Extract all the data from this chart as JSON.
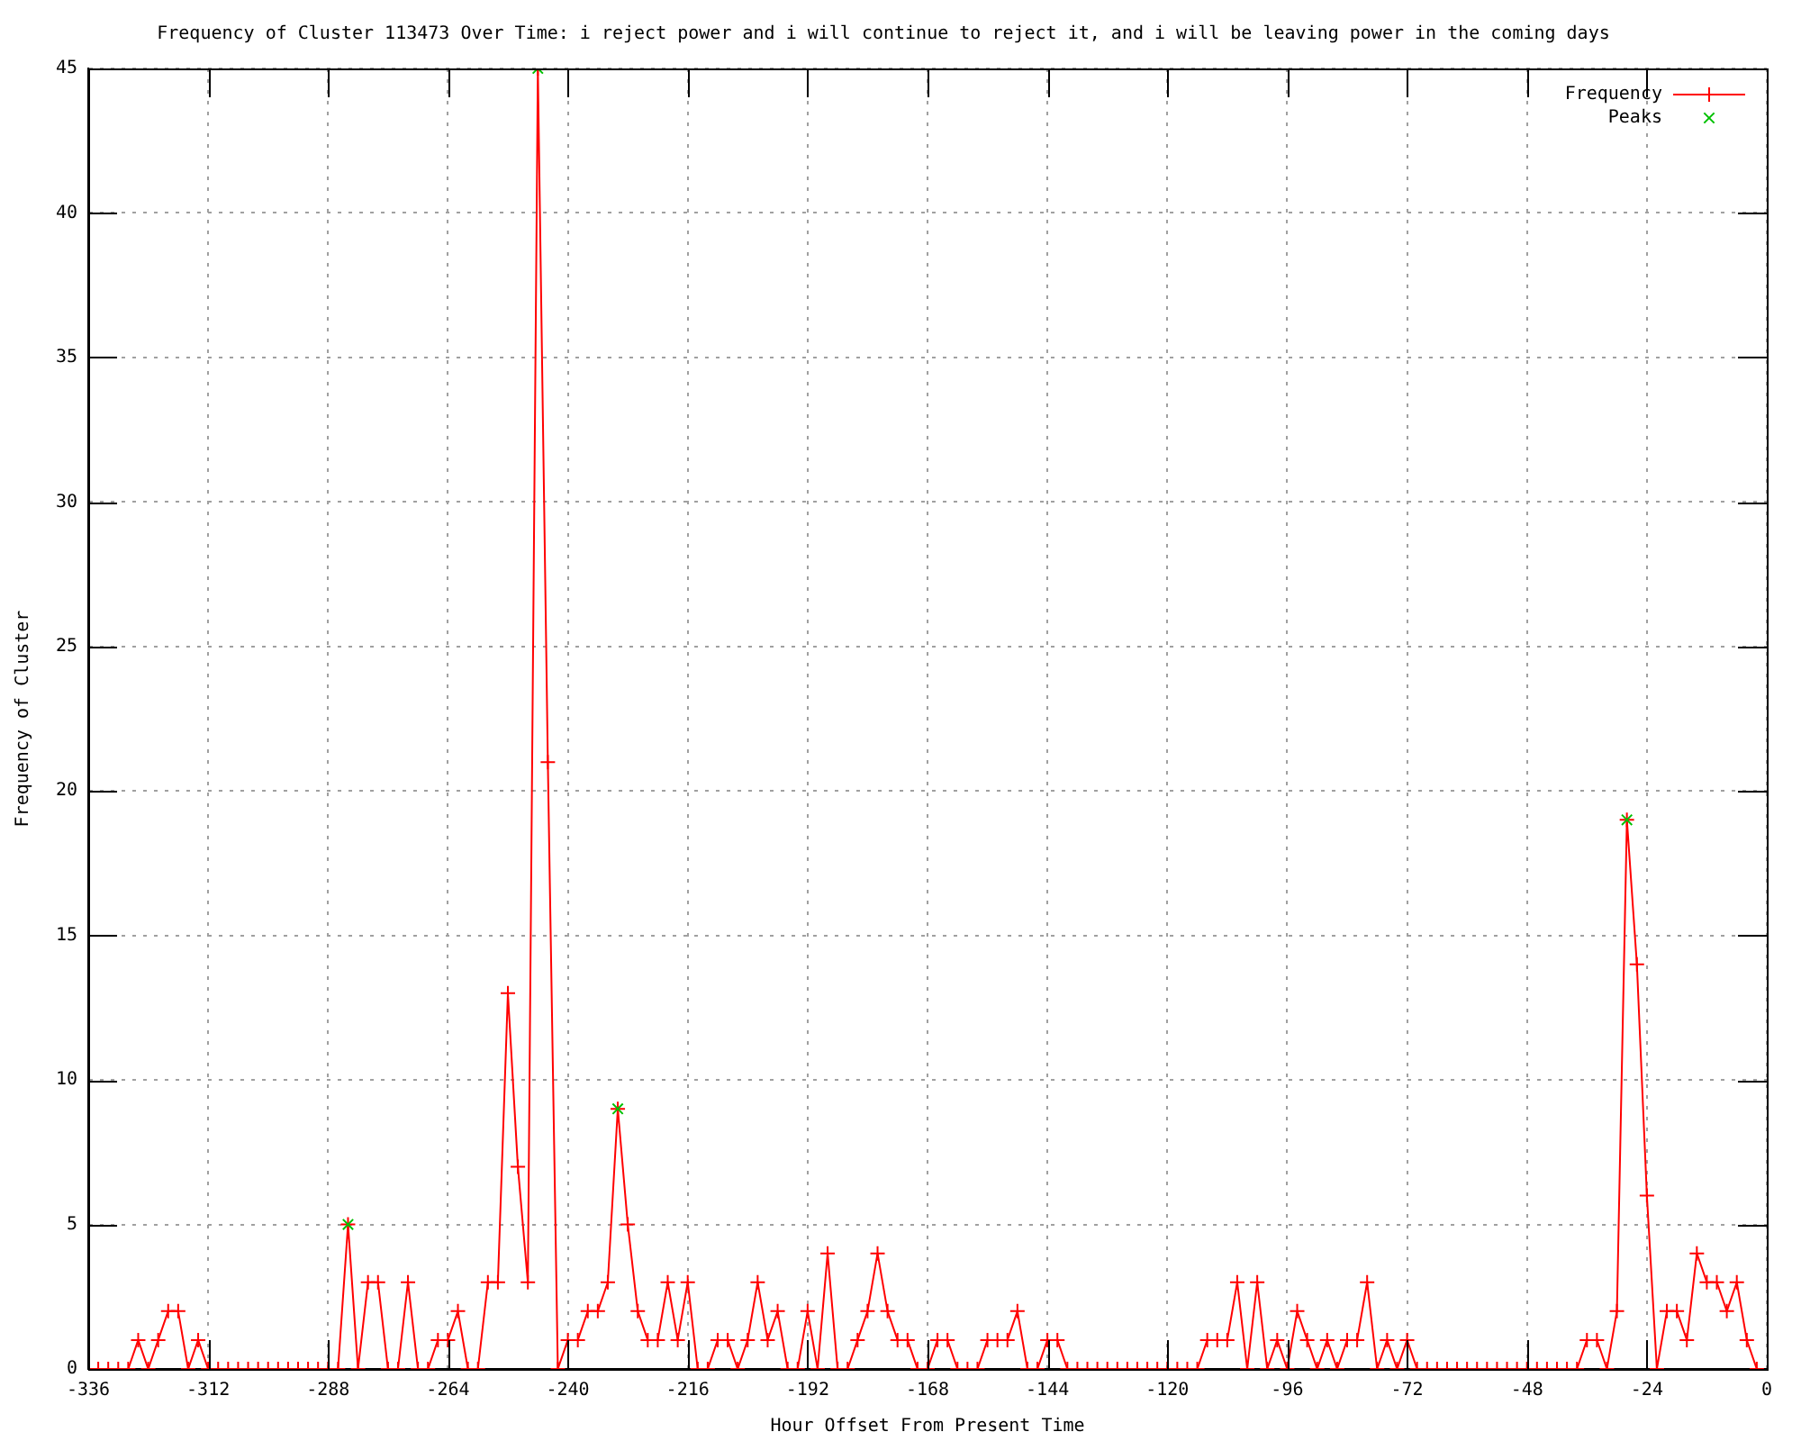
{
  "chart_data": {
    "type": "line",
    "title": "Frequency of Cluster 113473 Over Time: i reject power and i will continue to reject it, and i will be leaving power in the coming days",
    "xlabel": "Hour Offset From Present Time",
    "ylabel": "Frequency of Cluster",
    "xlim": [
      -336,
      0
    ],
    "xticks": [
      -336,
      -312,
      -288,
      -264,
      -240,
      -216,
      -192,
      -168,
      -144,
      -120,
      -96,
      -72,
      -48,
      -24,
      0
    ],
    "ylim": [
      0,
      45
    ],
    "yticks": [
      0,
      5,
      10,
      15,
      20,
      25,
      30,
      35,
      40,
      45
    ],
    "grid": true,
    "legend": "top right",
    "series": [
      {
        "name": "Frequency",
        "color": "#ff0000",
        "marker": "cross",
        "x": [
          -336,
          -334,
          -332,
          -330,
          -328,
          -326,
          -324,
          -322,
          -320,
          -318,
          -316,
          -314,
          -312,
          -310,
          -308,
          -306,
          -304,
          -302,
          -300,
          -298,
          -296,
          -294,
          -292,
          -290,
          -288,
          -286,
          -284,
          -282,
          -280,
          -278,
          -276,
          -274,
          -272,
          -270,
          -268,
          -266,
          -264,
          -262,
          -260,
          -258,
          -256,
          -254,
          -252,
          -250,
          -248,
          -246,
          -244,
          -242,
          -240,
          -238,
          -236,
          -234,
          -232,
          -230,
          -228,
          -226,
          -224,
          -222,
          -220,
          -218,
          -216,
          -214,
          -212,
          -210,
          -208,
          -206,
          -204,
          -202,
          -200,
          -198,
          -196,
          -194,
          -192,
          -190,
          -188,
          -186,
          -184,
          -182,
          -180,
          -178,
          -176,
          -174,
          -172,
          -170,
          -168,
          -166,
          -164,
          -162,
          -160,
          -158,
          -156,
          -154,
          -152,
          -150,
          -148,
          -146,
          -144,
          -142,
          -140,
          -138,
          -136,
          -134,
          -132,
          -130,
          -128,
          -126,
          -124,
          -122,
          -120,
          -118,
          -116,
          -114,
          -112,
          -110,
          -108,
          -106,
          -104,
          -102,
          -100,
          -98,
          -96,
          -94,
          -92,
          -90,
          -88,
          -86,
          -84,
          -82,
          -80,
          -78,
          -76,
          -74,
          -72,
          -70,
          -68,
          -66,
          -64,
          -62,
          -60,
          -58,
          -56,
          -54,
          -52,
          -50,
          -48,
          -46,
          -44,
          -42,
          -40,
          -38,
          -36,
          -34,
          -32,
          -30,
          -28,
          -26,
          -24,
          -22,
          -20,
          -18,
          -16,
          -14,
          -12,
          -10,
          -8,
          -6,
          -4,
          -2
        ],
        "values": [
          0,
          0,
          0,
          0,
          0,
          1,
          0,
          1,
          2,
          2,
          0,
          1,
          0,
          0,
          0,
          0,
          0,
          0,
          0,
          0,
          0,
          0,
          0,
          0,
          0,
          0,
          5,
          0,
          3,
          3,
          0,
          0,
          3,
          0,
          0,
          1,
          1,
          2,
          0,
          0,
          3,
          3,
          13,
          7,
          3,
          45,
          21,
          0,
          1,
          1,
          2,
          2,
          3,
          9,
          5,
          2,
          1,
          1,
          3,
          1,
          3,
          0,
          0,
          1,
          1,
          0,
          1,
          3,
          1,
          2,
          0,
          0,
          2,
          0,
          4,
          0,
          0,
          1,
          2,
          4,
          2,
          1,
          1,
          0,
          0,
          1,
          1,
          0,
          0,
          0,
          1,
          1,
          1,
          2,
          0,
          0,
          1,
          1,
          0,
          0,
          0,
          0,
          0,
          0,
          0,
          0,
          0,
          0,
          0,
          0,
          0,
          0,
          1,
          1,
          1,
          3,
          0,
          3,
          0,
          1,
          0,
          2,
          1,
          0,
          1,
          0,
          1,
          1,
          3,
          0,
          1,
          0,
          1,
          0,
          0,
          0,
          0,
          0,
          0,
          0,
          0,
          0,
          0,
          0,
          0,
          0,
          0,
          0,
          0,
          0,
          1,
          1,
          0,
          2,
          19,
          14,
          6,
          0,
          2,
          2,
          1,
          4,
          3,
          3,
          2,
          3,
          1,
          0
        ]
      },
      {
        "name": "Peaks",
        "type": "scatter",
        "color": "#00c000",
        "marker": "cross",
        "x": [
          -284,
          -246,
          -230,
          -28
        ],
        "values": [
          5,
          45,
          9,
          19
        ]
      }
    ]
  }
}
